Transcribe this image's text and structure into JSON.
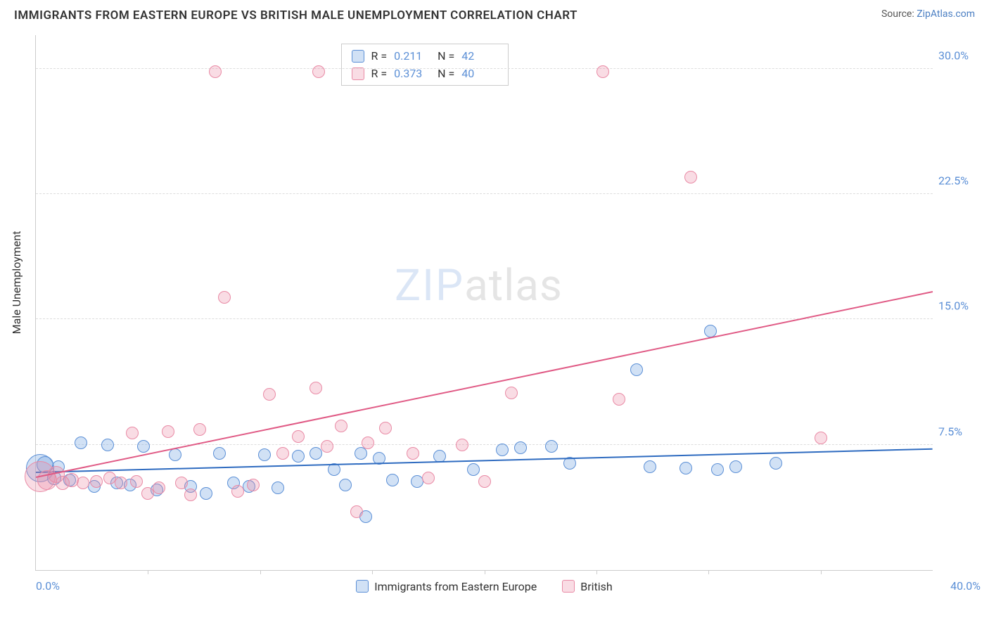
{
  "title": "IMMIGRANTS FROM EASTERN EUROPE VS BRITISH MALE UNEMPLOYMENT CORRELATION CHART",
  "source_prefix": "Source: ",
  "source_name": "ZipAtlas.com",
  "ylabel": "Male Unemployment",
  "watermark": {
    "part1": "ZIP",
    "part2": "atlas"
  },
  "chart": {
    "type": "scatter",
    "xlim": [
      0,
      40
    ],
    "ylim": [
      0,
      32
    ],
    "x_tick_step": 5,
    "x_min_label": "0.0%",
    "x_max_label": "40.0%",
    "y_ticks": [
      {
        "value": 7.5,
        "label": "7.5%"
      },
      {
        "value": 15.0,
        "label": "15.0%"
      },
      {
        "value": 22.5,
        "label": "22.5%"
      },
      {
        "value": 30.0,
        "label": "30.0%"
      }
    ],
    "grid_color": "#dddddd",
    "axis_color": "#cccccc",
    "tick_label_color": "#5b8fd6",
    "background_color": "#ffffff"
  },
  "series": [
    {
      "id": "blue",
      "label": "Immigrants from Eastern Europe",
      "fill": "rgba(123,169,226,0.35)",
      "stroke": "#5b8fd6",
      "line_color": "#2e6bc0",
      "R": "0.211",
      "N": "42",
      "trend": {
        "x1": 0,
        "y1": 5.8,
        "x2": 40,
        "y2": 7.2
      },
      "points": [
        {
          "x": 0.2,
          "y": 6.1,
          "r": 20
        },
        {
          "x": 0.4,
          "y": 6.3,
          "r": 12
        },
        {
          "x": 0.8,
          "y": 5.5,
          "r": 10
        },
        {
          "x": 1.0,
          "y": 6.2,
          "r": 9
        },
        {
          "x": 1.5,
          "y": 5.4,
          "r": 9
        },
        {
          "x": 2.0,
          "y": 7.6,
          "r": 9
        },
        {
          "x": 2.6,
          "y": 5.0,
          "r": 9
        },
        {
          "x": 3.2,
          "y": 7.5,
          "r": 9
        },
        {
          "x": 3.6,
          "y": 5.2,
          "r": 9
        },
        {
          "x": 4.2,
          "y": 5.1,
          "r": 9
        },
        {
          "x": 4.8,
          "y": 7.4,
          "r": 9
        },
        {
          "x": 5.4,
          "y": 4.8,
          "r": 9
        },
        {
          "x": 6.2,
          "y": 6.9,
          "r": 9
        },
        {
          "x": 6.9,
          "y": 5.0,
          "r": 9
        },
        {
          "x": 7.6,
          "y": 4.6,
          "r": 9
        },
        {
          "x": 8.2,
          "y": 7.0,
          "r": 9
        },
        {
          "x": 8.8,
          "y": 5.2,
          "r": 9
        },
        {
          "x": 9.5,
          "y": 5.0,
          "r": 9
        },
        {
          "x": 10.2,
          "y": 6.9,
          "r": 9
        },
        {
          "x": 10.8,
          "y": 4.9,
          "r": 9
        },
        {
          "x": 11.7,
          "y": 6.8,
          "r": 9
        },
        {
          "x": 12.5,
          "y": 7.0,
          "r": 9
        },
        {
          "x": 13.3,
          "y": 6.0,
          "r": 9
        },
        {
          "x": 13.8,
          "y": 5.1,
          "r": 9
        },
        {
          "x": 14.5,
          "y": 7.0,
          "r": 9
        },
        {
          "x": 14.7,
          "y": 3.2,
          "r": 9
        },
        {
          "x": 15.3,
          "y": 6.7,
          "r": 9
        },
        {
          "x": 15.9,
          "y": 5.4,
          "r": 9
        },
        {
          "x": 17.0,
          "y": 5.3,
          "r": 9
        },
        {
          "x": 18.0,
          "y": 6.8,
          "r": 9
        },
        {
          "x": 19.5,
          "y": 6.0,
          "r": 9
        },
        {
          "x": 20.8,
          "y": 7.2,
          "r": 9
        },
        {
          "x": 21.6,
          "y": 7.3,
          "r": 9
        },
        {
          "x": 23.0,
          "y": 7.4,
          "r": 9
        },
        {
          "x": 23.8,
          "y": 6.4,
          "r": 9
        },
        {
          "x": 26.8,
          "y": 12.0,
          "r": 9
        },
        {
          "x": 27.4,
          "y": 6.2,
          "r": 9
        },
        {
          "x": 29.0,
          "y": 6.1,
          "r": 9
        },
        {
          "x": 30.4,
          "y": 6.0,
          "r": 9
        },
        {
          "x": 31.2,
          "y": 6.2,
          "r": 9
        },
        {
          "x": 33.0,
          "y": 6.4,
          "r": 9
        },
        {
          "x": 30.1,
          "y": 14.3,
          "r": 9
        }
      ]
    },
    {
      "id": "pink",
      "label": "British",
      "fill": "rgba(235,140,165,0.30)",
      "stroke": "#e98aa5",
      "line_color": "#e05a85",
      "R": "0.373",
      "N": "40",
      "trend": {
        "x1": 0,
        "y1": 5.5,
        "x2": 40,
        "y2": 16.6
      },
      "points": [
        {
          "x": 0.2,
          "y": 5.6,
          "r": 22
        },
        {
          "x": 0.5,
          "y": 5.4,
          "r": 14
        },
        {
          "x": 0.9,
          "y": 5.7,
          "r": 12
        },
        {
          "x": 1.2,
          "y": 5.2,
          "r": 10
        },
        {
          "x": 1.6,
          "y": 5.4,
          "r": 10
        },
        {
          "x": 2.1,
          "y": 5.2,
          "r": 9
        },
        {
          "x": 2.7,
          "y": 5.3,
          "r": 9
        },
        {
          "x": 3.3,
          "y": 5.5,
          "r": 9
        },
        {
          "x": 3.8,
          "y": 5.2,
          "r": 9
        },
        {
          "x": 4.3,
          "y": 8.2,
          "r": 9
        },
        {
          "x": 4.5,
          "y": 5.3,
          "r": 9
        },
        {
          "x": 5.0,
          "y": 4.6,
          "r": 9
        },
        {
          "x": 5.5,
          "y": 4.9,
          "r": 9
        },
        {
          "x": 5.9,
          "y": 8.3,
          "r": 9
        },
        {
          "x": 6.5,
          "y": 5.2,
          "r": 9
        },
        {
          "x": 6.9,
          "y": 4.5,
          "r": 9
        },
        {
          "x": 7.3,
          "y": 8.4,
          "r": 9
        },
        {
          "x": 8.0,
          "y": 29.8,
          "r": 9
        },
        {
          "x": 8.4,
          "y": 16.3,
          "r": 9
        },
        {
          "x": 9.0,
          "y": 4.7,
          "r": 9
        },
        {
          "x": 9.7,
          "y": 5.1,
          "r": 9
        },
        {
          "x": 10.4,
          "y": 10.5,
          "r": 9
        },
        {
          "x": 11.0,
          "y": 7.0,
          "r": 9
        },
        {
          "x": 11.7,
          "y": 8.0,
          "r": 9
        },
        {
          "x": 12.5,
          "y": 10.9,
          "r": 9
        },
        {
          "x": 12.6,
          "y": 29.8,
          "r": 9
        },
        {
          "x": 13.0,
          "y": 7.4,
          "r": 9
        },
        {
          "x": 13.6,
          "y": 8.6,
          "r": 9
        },
        {
          "x": 14.3,
          "y": 3.5,
          "r": 9
        },
        {
          "x": 14.8,
          "y": 7.6,
          "r": 9
        },
        {
          "x": 15.6,
          "y": 8.5,
          "r": 9
        },
        {
          "x": 16.8,
          "y": 7.0,
          "r": 9
        },
        {
          "x": 17.5,
          "y": 5.5,
          "r": 9
        },
        {
          "x": 19.0,
          "y": 7.5,
          "r": 9
        },
        {
          "x": 20.0,
          "y": 5.3,
          "r": 9
        },
        {
          "x": 21.2,
          "y": 10.6,
          "r": 9
        },
        {
          "x": 26.0,
          "y": 10.2,
          "r": 9
        },
        {
          "x": 29.2,
          "y": 23.5,
          "r": 9
        },
        {
          "x": 35.0,
          "y": 7.9,
          "r": 9
        },
        {
          "x": 25.3,
          "y": 29.8,
          "r": 9
        }
      ]
    }
  ],
  "legend_box": {
    "R_label": "R",
    "N_label": "N",
    "equals": "="
  },
  "bottom_legend_order": [
    "blue",
    "pink"
  ]
}
